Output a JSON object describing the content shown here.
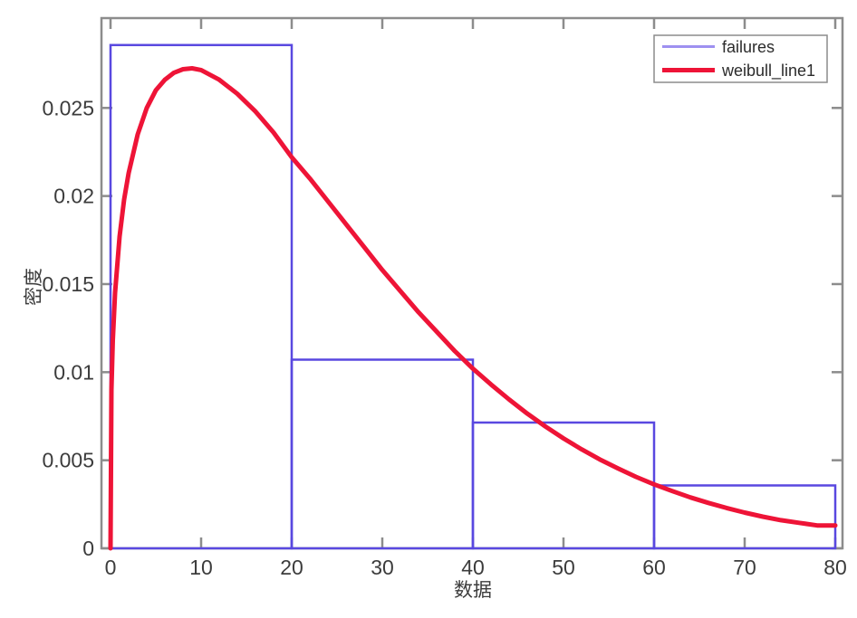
{
  "figure": {
    "background": "#ffffff",
    "axes": {
      "xlabel": "数据",
      "ylabel": "密度",
      "xlim": [
        -1,
        80.8
      ],
      "ylim": [
        0,
        0.0301
      ],
      "xticks": [
        0,
        10,
        20,
        30,
        40,
        50,
        60,
        70,
        80
      ],
      "xtick_labels": [
        "0",
        "10",
        "20",
        "30",
        "40",
        "50",
        "60",
        "70",
        "80"
      ],
      "yticks": [
        0,
        0.005,
        0.01,
        0.015,
        0.02,
        0.025
      ],
      "ytick_labels": [
        "0",
        "0.005",
        "0.01",
        "0.015",
        "0.02",
        "0.025"
      ],
      "axis_color": "#8c8c8c",
      "tick_label_color": "#3c3c3c",
      "grid": false,
      "box": true,
      "tick_direction": "in"
    },
    "legend": {
      "position": "top-right",
      "border_color": "#8c8c8c",
      "background": "#ffffff",
      "items": [
        {
          "label": "failures",
          "color": "#9e90f0",
          "line_width": 3
        },
        {
          "label": "weibull_line1",
          "color": "#ee1437",
          "line_width": 5
        }
      ]
    }
  },
  "chart_data": [
    {
      "type": "bar",
      "name": "failures",
      "style": "histogram-outline",
      "normalization": "pdf",
      "bin_edges": [
        0,
        20,
        40,
        60,
        80
      ],
      "values": [
        0.02857,
        0.01071,
        0.00714,
        0.00357
      ],
      "edge_color": "#5948e0",
      "fill": "none",
      "edge_width": 2.5
    },
    {
      "type": "line",
      "name": "weibull_line1",
      "color": "#ee1437",
      "width": 5,
      "x": [
        0,
        0.1,
        0.25,
        0.5,
        1,
        1.5,
        2,
        3,
        4,
        5,
        6,
        7,
        8,
        9,
        10,
        12,
        14,
        16,
        18,
        20,
        22,
        24,
        26,
        28,
        30,
        32,
        34,
        36,
        38,
        40,
        42,
        44,
        46,
        48,
        50,
        52,
        54,
        56,
        58,
        60,
        62,
        64,
        66,
        68,
        70,
        72,
        74,
        76,
        78,
        80
      ],
      "y": [
        0,
        0.009,
        0.0118,
        0.0145,
        0.0177,
        0.0198,
        0.0213,
        0.0235,
        0.025,
        0.026,
        0.0266,
        0.027,
        0.0272,
        0.02725,
        0.02715,
        0.0266,
        0.0258,
        0.0248,
        0.0236,
        0.0222,
        0.021,
        0.0197,
        0.0184,
        0.0171,
        0.0158,
        0.0146,
        0.0134,
        0.0123,
        0.0112,
        0.0102,
        0.0093,
        0.00845,
        0.00765,
        0.00692,
        0.00624,
        0.00562,
        0.00505,
        0.00454,
        0.00406,
        0.00363,
        0.00325,
        0.00289,
        0.00258,
        0.00229,
        0.00203,
        0.0018,
        0.0016,
        0.00145,
        0.0013,
        0.0013
      ]
    }
  ]
}
